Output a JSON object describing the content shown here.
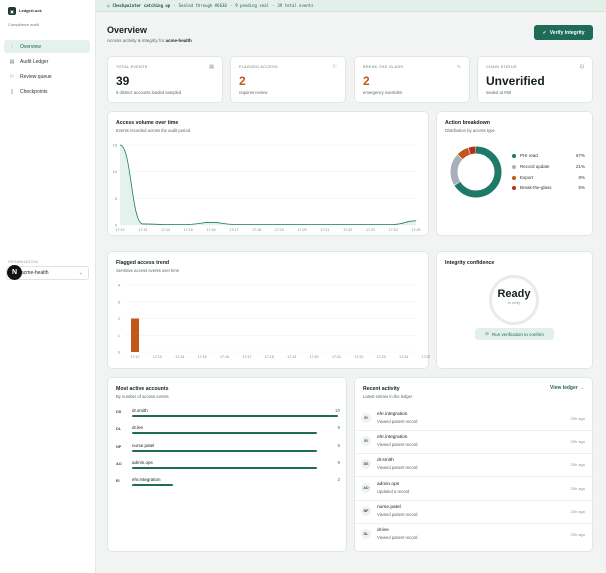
{
  "brand": {
    "name": "LedgerLock",
    "subtitle": "Compliance audit"
  },
  "sidebar": {
    "items": [
      {
        "label": "Overview",
        "icon": "chart-icon",
        "glyph": "⫶",
        "active": true
      },
      {
        "label": "Audit Ledger",
        "icon": "ledger-icon",
        "glyph": "▤",
        "active": false
      },
      {
        "label": "Review queue",
        "icon": "flag-icon",
        "glyph": "⚐",
        "active": false
      },
      {
        "label": "Checkpoints",
        "icon": "bookmark-icon",
        "glyph": "▯",
        "active": false
      }
    ],
    "org_label": "ORGANIZATION",
    "org_value": "acme-health",
    "avatar": "N"
  },
  "banner": {
    "status": "Checkpointer catching up",
    "sealed": "Sealed through #6630",
    "pending": "9 pending seal",
    "total": "39 total events"
  },
  "header": {
    "title": "Overview",
    "subtitle_prefix": "Access activity & integrity for",
    "org": "acme-health",
    "verify_label": "Verify integrity"
  },
  "stats": [
    {
      "label": "TOTAL EVENTS",
      "value": "39",
      "sub": "5 distinct accounts loaded sampled",
      "icon": "document-icon",
      "glyph": "▤",
      "accent": false
    },
    {
      "label": "FLAGGED ACCESS",
      "value": "2",
      "sub": "requires review",
      "icon": "flag-icon",
      "glyph": "⚐",
      "accent": true
    },
    {
      "label": "BREAK-THE-GLASS",
      "value": "2",
      "sub": "emergency overrides",
      "icon": "pulse-icon",
      "glyph": "∿",
      "accent": true
    },
    {
      "label": "CHAIN STATUS",
      "value": "Unverified",
      "sub": "sealed at #60",
      "icon": "lock-icon",
      "glyph": "⊡",
      "accent": false
    }
  ],
  "volume_card": {
    "title": "Access volume over time",
    "subtitle": "Events recorded across the audit period"
  },
  "flagged_card": {
    "title": "Flagged access trend",
    "subtitle": "Sensitive access events over time"
  },
  "breakdown_card": {
    "title": "Action breakdown",
    "subtitle": "Distribution by access type",
    "items": [
      {
        "label": "PHI read",
        "pct": "67%",
        "value": 67,
        "color": "#1e7a66"
      },
      {
        "label": "Record update",
        "pct": "21%",
        "value": 21,
        "color": "#a7b0bb"
      },
      {
        "label": "Export",
        "pct": "8%",
        "value": 8,
        "color": "#c2571a"
      },
      {
        "label": "Break-the-glass",
        "pct": "5%",
        "value": 5,
        "color": "#b3321f"
      }
    ]
  },
  "integrity_card": {
    "title": "Integrity confidence",
    "status": "Ready",
    "status_sub": "to verify",
    "run_label": "Run verification to confirm"
  },
  "accounts_card": {
    "title": "Most active accounts",
    "subtitle": "By number of access events",
    "rows": [
      {
        "initials": "DS",
        "name": "dr.smith",
        "count": "10",
        "value": 10
      },
      {
        "initials": "DL",
        "name": "dr.lee",
        "count": "9",
        "value": 9
      },
      {
        "initials": "NP",
        "name": "nurse.patel",
        "count": "9",
        "value": 9
      },
      {
        "initials": "AO",
        "name": "admin.ops",
        "count": "9",
        "value": 9
      },
      {
        "initials": "EI",
        "name": "ehr.integration",
        "count": "2",
        "value": 2
      }
    ]
  },
  "activity_card": {
    "title": "Recent activity",
    "subtitle": "Latest entries in the ledger",
    "view_label": "View ledger →",
    "rows": [
      {
        "initials": "EI",
        "name": "ehr.integration",
        "desc": "Viewed patient record",
        "time": "20h ago"
      },
      {
        "initials": "EI",
        "name": "ehr.integration",
        "desc": "Viewed patient record",
        "time": "20h ago"
      },
      {
        "initials": "DS",
        "name": "dr.smith",
        "desc": "Viewed patient record",
        "time": "20h ago"
      },
      {
        "initials": "AO",
        "name": "admin.ops",
        "desc": "Updated a record",
        "time": "20h ago"
      },
      {
        "initials": "NP",
        "name": "nurse.patel",
        "desc": "Viewed patient record",
        "time": "20h ago"
      },
      {
        "initials": "DL",
        "name": "dr.lee",
        "desc": "Viewed patient record",
        "time": "20h ago"
      }
    ]
  },
  "colors": {
    "accent": "#1e6b57",
    "orange": "#c2571a",
    "red": "#b3321f"
  },
  "chart_data": [
    {
      "type": "area",
      "title": "Access volume over time",
      "x": [
        "17:12",
        "17:13",
        "17:14",
        "17:15",
        "17:16",
        "17:17",
        "17:18",
        "17:19",
        "17:20",
        "17:21",
        "17:22",
        "17:23",
        "17:24",
        "17:25"
      ],
      "y_ticks": [
        0,
        5,
        10,
        15
      ],
      "ylim": [
        0,
        15
      ],
      "series": [
        {
          "values": [
            15,
            0.2,
            0.1,
            0.1,
            0.5,
            0.1,
            0.1,
            0.1,
            0.1,
            0.1,
            0.1,
            0.1,
            0.1,
            0.8
          ]
        }
      ]
    },
    {
      "type": "bar",
      "title": "Flagged access trend",
      "categories": [
        "17:12",
        "17:13",
        "17:14",
        "17:15",
        "17:16",
        "17:17",
        "17:18",
        "17:19",
        "17:20",
        "17:21",
        "17:22",
        "17:23",
        "17:24",
        "17:25"
      ],
      "y_ticks": [
        0,
        1,
        2,
        3,
        4
      ],
      "ylim": [
        0,
        4
      ],
      "series": [
        {
          "values": [
            2,
            0,
            0,
            0,
            0,
            0,
            0,
            0,
            0,
            0,
            0,
            0,
            0,
            0
          ]
        }
      ]
    },
    {
      "type": "pie",
      "title": "Action breakdown",
      "categories": [
        "PHI read",
        "Record update",
        "Export",
        "Break-the-glass"
      ],
      "values": [
        67,
        21,
        8,
        5
      ]
    }
  ]
}
